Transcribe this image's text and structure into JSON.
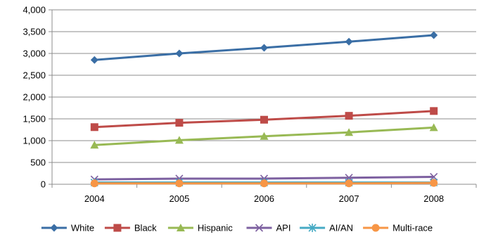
{
  "chart_data": {
    "type": "line",
    "title": "",
    "xlabel": "",
    "ylabel": "",
    "categories": [
      "2004",
      "2005",
      "2006",
      "2007",
      "2008"
    ],
    "ylim": [
      0,
      4000
    ],
    "yticks": [
      0,
      500,
      1000,
      1500,
      2000,
      2500,
      3000,
      3500,
      4000
    ],
    "ytick_labels": [
      "0",
      "500",
      "1,000",
      "1,500",
      "2,000",
      "2,500",
      "3,000",
      "3,500",
      "4,000"
    ],
    "grid": true,
    "legend_position": "bottom",
    "series": [
      {
        "name": "White",
        "values": [
          2850,
          3000,
          3130,
          3270,
          3420
        ],
        "color": "#3A6EA5",
        "marker": "diamond"
      },
      {
        "name": "Black",
        "values": [
          1310,
          1410,
          1480,
          1570,
          1680
        ],
        "color": "#BE4B48",
        "marker": "square"
      },
      {
        "name": "Hispanic",
        "values": [
          900,
          1010,
          1100,
          1190,
          1300
        ],
        "color": "#98B954",
        "marker": "triangle"
      },
      {
        "name": "API",
        "values": [
          110,
          130,
          130,
          150,
          170
        ],
        "color": "#7D60A0",
        "marker": "x"
      },
      {
        "name": "AI/AN",
        "values": [
          40,
          40,
          40,
          40,
          40
        ],
        "color": "#46AAC4",
        "marker": "star"
      },
      {
        "name": "Multi-race",
        "values": [
          20,
          20,
          20,
          20,
          30
        ],
        "color": "#F79646",
        "marker": "circle"
      }
    ]
  }
}
